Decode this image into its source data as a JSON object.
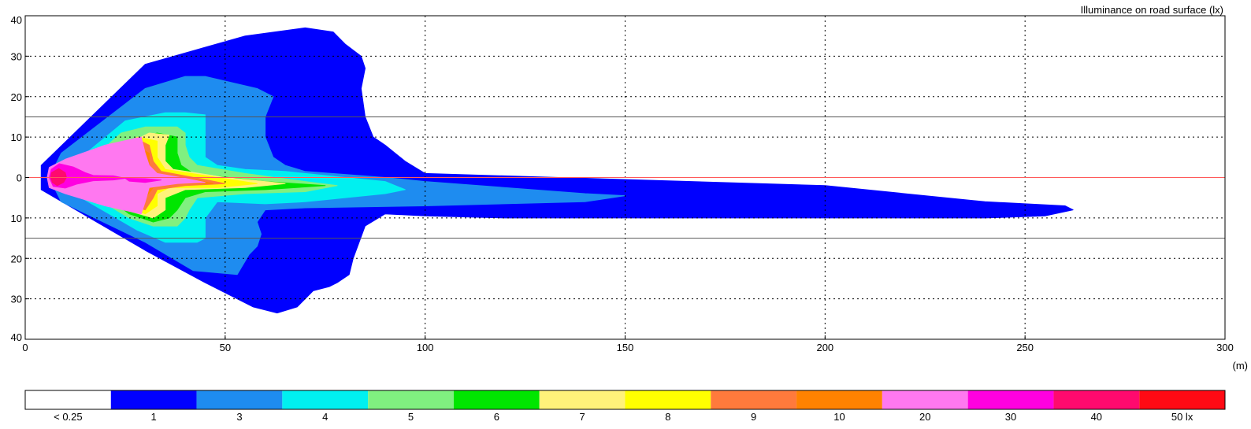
{
  "chart_data": {
    "type": "heatmap",
    "title": "Illuminance on road surface (lx)",
    "xlabel": "(m)",
    "ylabel": "",
    "xlim": [
      0,
      300
    ],
    "ylim": [
      -40,
      40
    ],
    "x_ticks": [
      0,
      50,
      100,
      150,
      200,
      250,
      300
    ],
    "x_tick_labels": [
      "0",
      "50",
      "100",
      "150",
      "200",
      "250",
      "300"
    ],
    "y_ticks": [
      40,
      30,
      20,
      10,
      0,
      -10,
      -20,
      -30,
      -40
    ],
    "y_tick_labels": [
      "40",
      "30",
      "20",
      "10",
      "0",
      "10",
      "20",
      "30",
      "40"
    ],
    "grid": true,
    "reference_lines": [
      {
        "y": 15,
        "color": "#555555"
      },
      {
        "y": 0,
        "color": "#ff5a5a"
      },
      {
        "y": -15,
        "color": "#555555"
      }
    ],
    "legend": {
      "placement": "bottom",
      "items": [
        {
          "label": "< 0.25",
          "color": "#ffffff"
        },
        {
          "label": "1",
          "color": "#0000ff"
        },
        {
          "label": "3",
          "color": "#1e8cf0"
        },
        {
          "label": "4",
          "color": "#00f0f0"
        },
        {
          "label": "5",
          "color": "#80f080"
        },
        {
          "label": "6",
          "color": "#00e600"
        },
        {
          "label": "7",
          "color": "#fff27a"
        },
        {
          "label": "8",
          "color": "#ffff00"
        },
        {
          "label": "9",
          "color": "#ff7a3c"
        },
        {
          "label": "10",
          "color": "#ff8200"
        },
        {
          "label": "20",
          "color": "#ff78f0"
        },
        {
          "label": "30",
          "color": "#ff00e0"
        },
        {
          "label": "40",
          "color": "#ff0a6e"
        },
        {
          "label": "50 lx",
          "color": "#ff0a14"
        }
      ]
    },
    "regions": [
      {
        "level": "1",
        "color": "#0000ff",
        "points": [
          [
            4,
            3
          ],
          [
            30,
            28
          ],
          [
            55,
            35
          ],
          [
            70,
            37
          ],
          [
            77,
            36
          ],
          [
            80,
            33
          ],
          [
            84,
            30
          ],
          [
            85,
            27
          ],
          [
            84,
            22
          ],
          [
            85,
            15
          ],
          [
            87,
            10
          ],
          [
            90,
            8
          ],
          [
            95,
            4
          ],
          [
            100,
            1
          ],
          [
            200,
            -2
          ],
          [
            240,
            -6
          ],
          [
            260,
            -7
          ],
          [
            262,
            -8
          ],
          [
            255,
            -9.5
          ],
          [
            240,
            -10
          ],
          [
            200,
            -10
          ],
          [
            150,
            -10
          ],
          [
            120,
            -10
          ],
          [
            100,
            -9.5
          ],
          [
            90,
            -9
          ],
          [
            85,
            -12
          ],
          [
            82,
            -20
          ],
          [
            81,
            -24
          ],
          [
            78,
            -26
          ],
          [
            76,
            -27
          ],
          [
            72,
            -28
          ],
          [
            70,
            -30
          ],
          [
            68,
            -32
          ],
          [
            63,
            -33.5
          ],
          [
            57,
            -32
          ],
          [
            45,
            -26
          ],
          [
            30,
            -18
          ],
          [
            4,
            -3
          ],
          [
            4,
            0
          ]
        ]
      },
      {
        "level": "3",
        "color": "#1e8cf0",
        "points": [
          [
            9,
            6
          ],
          [
            30,
            22
          ],
          [
            40,
            25
          ],
          [
            45,
            25
          ],
          [
            58,
            22
          ],
          [
            62,
            20
          ],
          [
            60,
            15
          ],
          [
            60,
            10
          ],
          [
            62,
            5
          ],
          [
            65,
            3
          ],
          [
            70,
            1.5
          ],
          [
            90,
            0
          ],
          [
            100,
            -1
          ],
          [
            140,
            -4
          ],
          [
            150,
            -4.5
          ],
          [
            140,
            -6
          ],
          [
            100,
            -7
          ],
          [
            70,
            -7.5
          ],
          [
            60,
            -8
          ],
          [
            58,
            -11
          ],
          [
            59,
            -14
          ],
          [
            58,
            -17
          ],
          [
            56,
            -19
          ],
          [
            53,
            -24
          ],
          [
            42,
            -23
          ],
          [
            30,
            -16
          ],
          [
            9,
            -6
          ],
          [
            6,
            0
          ]
        ]
      },
      {
        "level": "4",
        "color": "#00f0f0",
        "points": [
          [
            14,
            5
          ],
          [
            25,
            14
          ],
          [
            35,
            16
          ],
          [
            40,
            16
          ],
          [
            45,
            15.5
          ],
          [
            45,
            10
          ],
          [
            45,
            5
          ],
          [
            48,
            3
          ],
          [
            55,
            2
          ],
          [
            65,
            1.5
          ],
          [
            90,
            -1
          ],
          [
            95,
            -3
          ],
          [
            90,
            -4
          ],
          [
            70,
            -6
          ],
          [
            60,
            -6.5
          ],
          [
            48,
            -6
          ],
          [
            45,
            -10
          ],
          [
            45,
            -15
          ],
          [
            43,
            -16
          ],
          [
            35,
            -16
          ],
          [
            28,
            -13
          ],
          [
            14,
            -5
          ],
          [
            10,
            0
          ]
        ]
      },
      {
        "level": "5",
        "color": "#80f080",
        "points": [
          [
            16,
            4
          ],
          [
            24,
            11
          ],
          [
            30,
            12.5
          ],
          [
            38,
            12.5
          ],
          [
            40,
            11
          ],
          [
            40,
            8
          ],
          [
            41,
            5
          ],
          [
            43,
            3
          ],
          [
            55,
            1
          ],
          [
            70,
            -1
          ],
          [
            78,
            -2
          ],
          [
            70,
            -3.5
          ],
          [
            55,
            -4
          ],
          [
            43,
            -5
          ],
          [
            41,
            -8
          ],
          [
            40,
            -10
          ],
          [
            38,
            -12
          ],
          [
            32,
            -12
          ],
          [
            26,
            -10
          ],
          [
            16,
            -4
          ],
          [
            13,
            0
          ]
        ]
      },
      {
        "level": "6",
        "color": "#00e600",
        "points": [
          [
            18,
            3
          ],
          [
            26,
            9
          ],
          [
            33,
            11
          ],
          [
            38,
            10
          ],
          [
            38,
            6
          ],
          [
            39,
            3
          ],
          [
            42,
            1
          ],
          [
            60,
            -1
          ],
          [
            75,
            -2
          ],
          [
            60,
            -3
          ],
          [
            45,
            -3.5
          ],
          [
            40,
            -5
          ],
          [
            38,
            -8
          ],
          [
            36,
            -10
          ],
          [
            32,
            -11
          ],
          [
            26,
            -9
          ],
          [
            18,
            -3
          ],
          [
            14,
            0
          ]
        ]
      },
      {
        "level": "7",
        "color": "#fff27a",
        "points": [
          [
            18,
            2.5
          ],
          [
            25,
            8
          ],
          [
            31,
            11
          ],
          [
            36,
            10.5
          ],
          [
            35,
            8
          ],
          [
            35,
            4
          ],
          [
            37,
            2
          ],
          [
            50,
            0
          ],
          [
            65,
            -1.5
          ],
          [
            55,
            -2.5
          ],
          [
            40,
            -3
          ],
          [
            35,
            -5
          ],
          [
            35,
            -8
          ],
          [
            32,
            -10
          ],
          [
            25,
            -8
          ],
          [
            18,
            -2.5
          ],
          [
            14,
            0
          ]
        ]
      },
      {
        "level": "8",
        "color": "#ffff00",
        "points": [
          [
            20,
            3
          ],
          [
            28,
            10
          ],
          [
            33,
            9
          ],
          [
            33,
            5
          ],
          [
            35,
            2
          ],
          [
            48,
            0
          ],
          [
            58,
            -1.5
          ],
          [
            48,
            -2.5
          ],
          [
            36,
            -2.5
          ],
          [
            33,
            -4
          ],
          [
            33,
            -7
          ],
          [
            30,
            -9
          ],
          [
            22,
            -6
          ],
          [
            18,
            -2
          ],
          [
            15,
            0
          ]
        ]
      },
      {
        "level": "9",
        "color": "#ff7a3c",
        "points": [
          [
            22,
            3
          ],
          [
            29,
            9
          ],
          [
            31,
            8
          ],
          [
            32,
            4
          ],
          [
            34,
            1.5
          ],
          [
            45,
            -0.5
          ],
          [
            50,
            -1.5
          ],
          [
            40,
            -2
          ],
          [
            33,
            -3
          ],
          [
            32,
            -5
          ],
          [
            30,
            -8
          ],
          [
            24,
            -6
          ],
          [
            18,
            -2
          ],
          [
            15,
            0
          ]
        ]
      },
      {
        "level": "10",
        "color": "#ff8200",
        "points": [
          [
            24,
            3
          ],
          [
            29,
            7
          ],
          [
            31,
            6
          ],
          [
            31,
            3
          ],
          [
            33,
            1
          ],
          [
            42,
            -0.5
          ],
          [
            47,
            -1.5
          ],
          [
            38,
            -1.5
          ],
          [
            32,
            -2.5
          ],
          [
            30,
            -5
          ],
          [
            27,
            -6
          ],
          [
            20,
            -3
          ],
          [
            17,
            0
          ]
        ]
      },
      {
        "level": "20",
        "color": "#ff78f0",
        "points": [
          [
            6,
            2.5
          ],
          [
            10,
            4.5
          ],
          [
            20,
            8
          ],
          [
            29,
            10
          ],
          [
            30,
            6
          ],
          [
            31,
            3
          ],
          [
            33,
            1
          ],
          [
            40,
            -0.2
          ],
          [
            45,
            -1.2
          ],
          [
            38,
            -1.5
          ],
          [
            31,
            -2.5
          ],
          [
            30,
            -6
          ],
          [
            29,
            -9
          ],
          [
            20,
            -7
          ],
          [
            10,
            -4
          ],
          [
            6,
            -2.5
          ],
          [
            5.5,
            0
          ]
        ]
      },
      {
        "level": "30",
        "color": "#ff00e0",
        "points": [
          [
            6.5,
            2
          ],
          [
            8.5,
            3.4
          ],
          [
            12,
            2.6
          ],
          [
            15,
            1.2
          ],
          [
            17,
            0.5
          ],
          [
            22,
            0.4
          ],
          [
            25,
            -0.2
          ],
          [
            22,
            -0.6
          ],
          [
            17,
            -0.8
          ],
          [
            13,
            -1.6
          ],
          [
            10,
            -2.6
          ],
          [
            7,
            -2.2
          ],
          [
            6,
            0
          ]
        ]
      },
      {
        "level": "30",
        "color": "#ff00e0",
        "points": [
          [
            25,
            -0.2
          ],
          [
            30,
            -0.3
          ],
          [
            34,
            -0.6
          ],
          [
            30,
            -1.2
          ],
          [
            26,
            -0.9
          ]
        ]
      },
      {
        "level": "40",
        "color": "#ff0a6e",
        "points": [
          [
            6.6,
            1.2
          ],
          [
            8.4,
            2.2
          ],
          [
            10,
            1.2
          ],
          [
            10.3,
            0
          ],
          [
            9.6,
            -1.2
          ],
          [
            8,
            -2
          ],
          [
            6.8,
            -1.2
          ],
          [
            6.4,
            0
          ]
        ]
      }
    ]
  }
}
